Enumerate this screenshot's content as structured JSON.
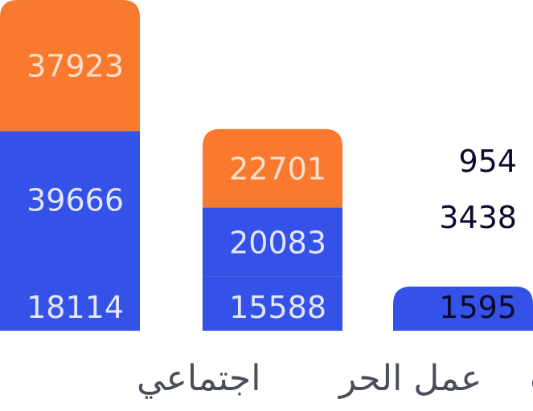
{
  "chart_data": {
    "type": "bar",
    "stacked": true,
    "categories": [
      "اجتماعي",
      "عمل الحر",
      "منشآت"
    ],
    "series": [
      {
        "values": [
          18114,
          15588,
          1595
        ],
        "color": "#3451E8"
      },
      {
        "values": [
          39666,
          20083,
          3438
        ],
        "color": "#3451E8"
      },
      {
        "values": [
          37923,
          22701,
          954
        ],
        "color": "#F97A2E"
      }
    ],
    "title": "",
    "xlabel": "",
    "ylabel": "",
    "ylim": [
      0,
      95703
    ],
    "grid": false,
    "legend": "none"
  }
}
